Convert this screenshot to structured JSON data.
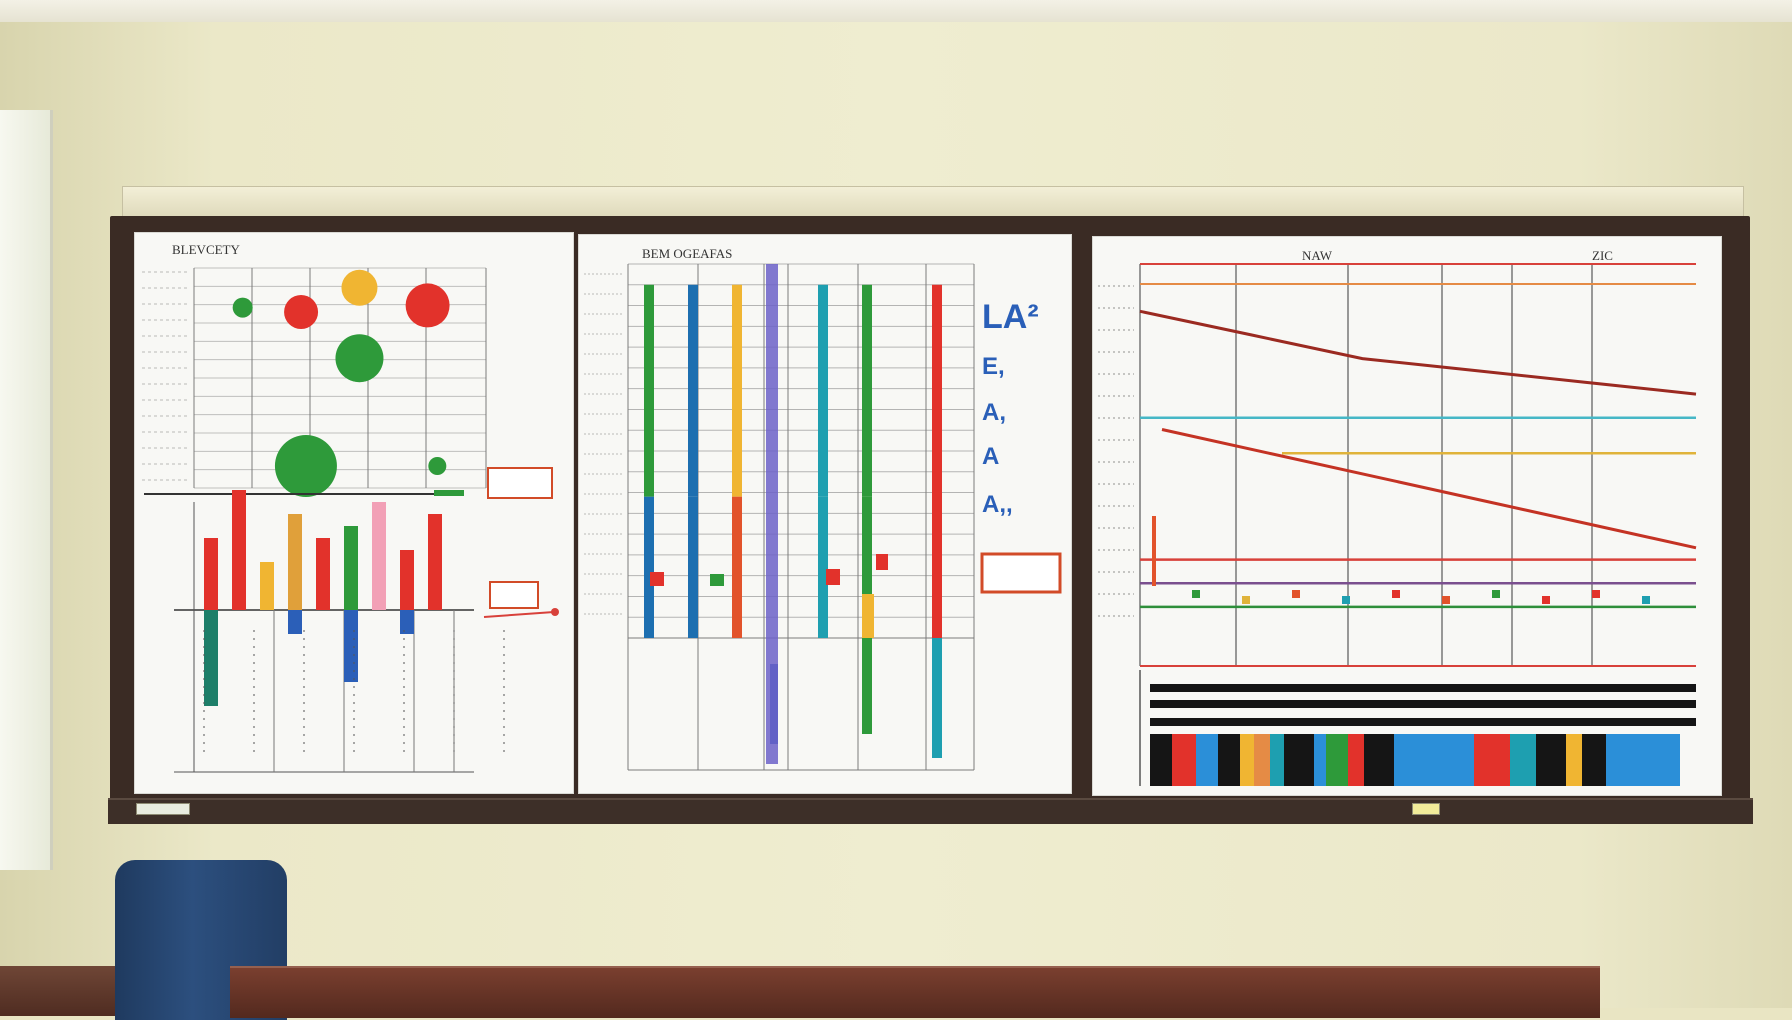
{
  "scene": {
    "colors": {
      "wall": "#ece9c9",
      "board_frame": "#3a2b24",
      "paper": "#f8f8f5",
      "chair": "#2c4f7e",
      "desk": "#6b3526"
    }
  },
  "left_panel": {
    "title": "BLEVCETY"
  },
  "middle_panel": {
    "title": "BEM OGEAFAS",
    "side_letters": [
      "LA²",
      "E,",
      "A,",
      "A",
      "A,,"
    ]
  },
  "right_panel": {
    "title": "NAW",
    "corner_label": "ZIC"
  },
  "chart_data": [
    {
      "type": "scatter",
      "title": "BLEVCETY",
      "series": [
        {
          "values": [
            {
              "x": 1,
              "y": 8.2,
              "size": 10,
              "color": "#2e9a3a"
            },
            {
              "x": 2.2,
              "y": 8.0,
              "size": 17,
              "color": "#e2322b"
            },
            {
              "x": 3.4,
              "y": 9.1,
              "size": 18,
              "color": "#f0b532"
            },
            {
              "x": 4.8,
              "y": 8.3,
              "size": 22,
              "color": "#e2322b"
            },
            {
              "x": 3.4,
              "y": 5.9,
              "size": 24,
              "color": "#2e9a3a"
            },
            {
              "x": 2.3,
              "y": 1.0,
              "size": 31,
              "color": "#2e9a3a"
            },
            {
              "x": 5.0,
              "y": 1.0,
              "size": 9,
              "color": "#2e9a3a"
            }
          ]
        }
      ]
    },
    {
      "type": "bar",
      "series": [
        {
          "values": [
            3,
            5,
            2,
            4,
            3,
            3.5,
            4.5,
            2.5,
            4
          ]
        },
        {
          "values": [
            -4,
            0,
            0,
            -1,
            0,
            -3,
            0,
            -1,
            0
          ]
        }
      ]
    },
    {
      "type": "bar",
      "title": "BEM OGEAFAS",
      "series": [
        {
          "values": [
            17,
            17,
            17,
            17,
            17,
            17,
            12
          ]
        }
      ]
    },
    {
      "type": "line",
      "title": "NAW",
      "series": [
        {
          "values": [
            30,
            28,
            26,
            25,
            24,
            23
          ],
          "color": "#9b2a21"
        },
        {
          "values": [
            20,
            18,
            16,
            14,
            12,
            10
          ],
          "color": "#c43324"
        },
        {
          "values": [
            21,
            21,
            21,
            21,
            21,
            21
          ],
          "color": "#46b7c6"
        },
        {
          "values": [
            18,
            18,
            18,
            18,
            18,
            18
          ],
          "color": "#e0b33a"
        },
        {
          "values": [
            9,
            9,
            9,
            9,
            9,
            9
          ],
          "color": "#d8413a"
        },
        {
          "values": [
            7,
            7,
            7,
            7,
            7,
            7
          ],
          "color": "#7a4f8e"
        },
        {
          "values": [
            5,
            5,
            5,
            5,
            5,
            5
          ],
          "color": "#2e8f3a"
        }
      ]
    }
  ]
}
